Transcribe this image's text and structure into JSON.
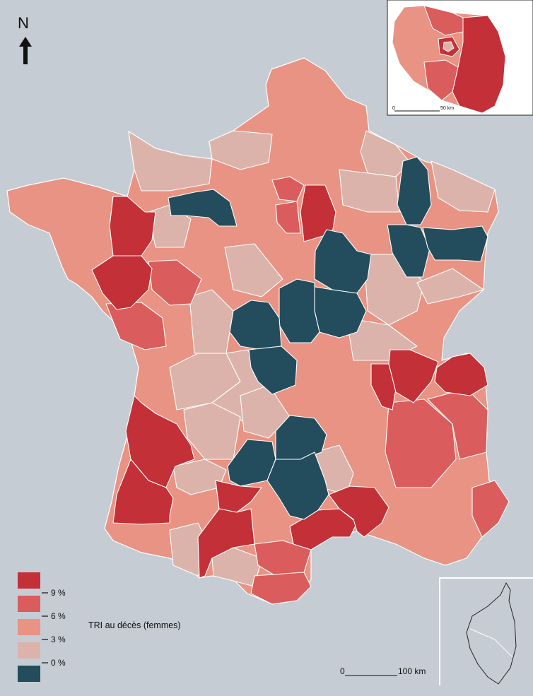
{
  "north": {
    "letter": "N",
    "icon": "north-arrow-icon"
  },
  "legend": {
    "title": "TRI au décès (femmes)",
    "ticks": [
      "9 %",
      "6 %",
      "3 %",
      "0 %"
    ],
    "classes": [
      {
        "range": "> 9 %",
        "color": "#c33038"
      },
      {
        "range": "6 – 9 %",
        "color": "#db5c5c"
      },
      {
        "range": "3 – 6 %",
        "color": "#e89383"
      },
      {
        "range": "0 – 3 %",
        "color": "#dcb3aa"
      },
      {
        "range": "< 0 %",
        "color": "#234d5c"
      }
    ]
  },
  "scale_main": {
    "start": "0",
    "end": "100 km"
  },
  "scale_inset": {
    "start": "0",
    "end": "50 km"
  },
  "colors": {
    "sea": "#c5ccd4",
    "dark_red": "#c33038",
    "red": "#db5c5c",
    "salmon": "#e89383",
    "pale": "#dcb3aa",
    "teal": "#234d5c",
    "border": "#ffffff"
  }
}
